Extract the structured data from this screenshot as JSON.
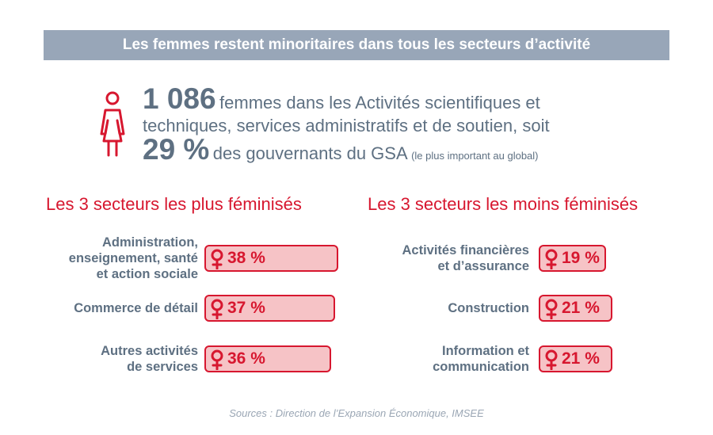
{
  "banner": {
    "title": "Les femmes restent minoritaires dans tous les secteurs d’activité"
  },
  "headline": {
    "count": "1 086",
    "line1_rest": "femmes dans les Activités scientifiques et",
    "line2": "techniques, services administratifs et de soutien, soit",
    "percent": "29 %",
    "line3_rest": "des gouvernants du GSA",
    "note": "(le plus important au global)"
  },
  "source": "Sources : Direction de l’Expansion Économique, IMSEE",
  "colors": {
    "accent": "#d7172f",
    "bar_fill": "#f6c3c6",
    "text_gray": "#5e7082",
    "banner_bg": "#98a6b8"
  },
  "icons": {
    "person": "woman-icon",
    "female": "female-symbol-icon"
  },
  "chart_data": [
    {
      "type": "bar",
      "title": "Les 3 secteurs les plus féminisés",
      "categories": [
        [
          "Administration,",
          "enseignement, santé",
          "et action sociale"
        ],
        [
          "Commerce de détail"
        ],
        [
          "Autres activités",
          "de services"
        ]
      ],
      "values": [
        38,
        37,
        36
      ],
      "value_labels": [
        "38 %",
        "37 %",
        "36 %"
      ],
      "unit": "%"
    },
    {
      "type": "bar",
      "title": "Les 3 secteurs les moins féminisés",
      "categories": [
        [
          "Activités financières",
          "et d’assurance"
        ],
        [
          "Construction"
        ],
        [
          "Information et",
          "communication"
        ]
      ],
      "values": [
        19,
        21,
        21
      ],
      "value_labels": [
        "19 %",
        "21 %",
        "21 %"
      ],
      "unit": "%"
    }
  ]
}
